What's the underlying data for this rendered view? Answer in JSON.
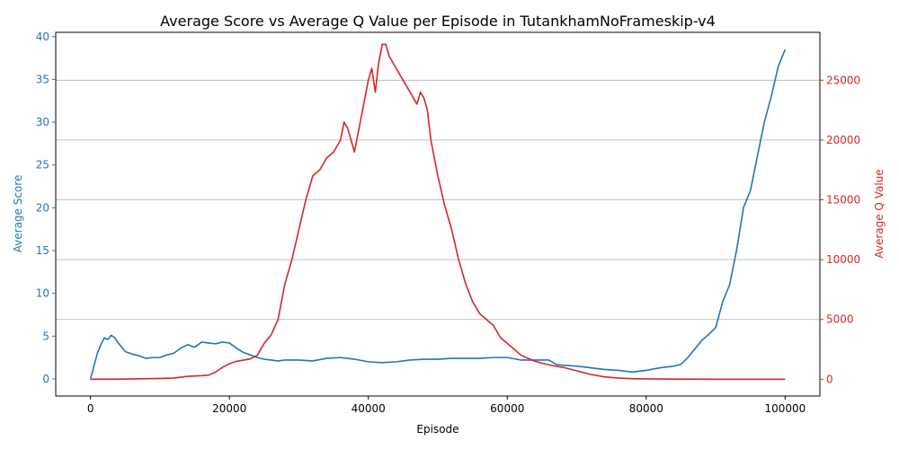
{
  "chart_data": {
    "type": "line",
    "title": "Average Score vs Average Q Value per Episode in TutankhamNoFrameskip-v4",
    "xlabel": "Episode",
    "ylabel_left": "Average Score",
    "ylabel_right": "Average Q Value",
    "xlim": [
      -5000,
      105000
    ],
    "ylim_left": [
      -2,
      40.5
    ],
    "ylim_right": [
      -1400,
      29000
    ],
    "x_ticks": [
      0,
      20000,
      40000,
      60000,
      80000,
      100000
    ],
    "y_ticks_left": [
      0,
      5,
      10,
      15,
      20,
      25,
      30,
      35,
      40
    ],
    "y_ticks_right": [
      0,
      5000,
      10000,
      15000,
      20000,
      25000
    ],
    "grid": "horizontal lines at right-axis ticks",
    "colors": {
      "score": "#1f77b4",
      "q": "#d62728"
    },
    "series": [
      {
        "axis": "left",
        "x": [
          0,
          500,
          1000,
          1500,
          2000,
          2500,
          3000,
          3500,
          4000,
          5000,
          6000,
          7000,
          8000,
          9000,
          10000,
          11000,
          12000,
          13000,
          14000,
          15000,
          16000,
          17000,
          18000,
          19000,
          20000,
          21000,
          22000,
          23000,
          24000,
          25000,
          26000,
          27000,
          28000,
          30000,
          32000,
          34000,
          36000,
          38000,
          40000,
          42000,
          44000,
          46000,
          48000,
          50000,
          52000,
          54000,
          56000,
          58000,
          60000,
          62000,
          64000,
          66000,
          67000,
          68000,
          70000,
          72000,
          74000,
          76000,
          78000,
          80000,
          82000,
          84000,
          85000,
          86000,
          87000,
          88000,
          89000,
          90000,
          91000,
          92000,
          93000,
          94000,
          95000,
          96000,
          97000,
          98000,
          99000,
          99500,
          100000
        ],
        "values": [
          0,
          1.5,
          3,
          4,
          4.8,
          4.6,
          5.1,
          4.8,
          4.2,
          3.2,
          2.9,
          2.7,
          2.4,
          2.5,
          2.5,
          2.8,
          3.0,
          3.6,
          4.0,
          3.7,
          4.3,
          4.2,
          4.1,
          4.3,
          4.2,
          3.6,
          3.1,
          2.8,
          2.5,
          2.3,
          2.2,
          2.1,
          2.2,
          2.2,
          2.1,
          2.4,
          2.5,
          2.3,
          2.0,
          1.9,
          2.0,
          2.2,
          2.3,
          2.3,
          2.4,
          2.4,
          2.4,
          2.5,
          2.5,
          2.2,
          2.2,
          2.2,
          1.7,
          1.6,
          1.5,
          1.3,
          1.1,
          1.0,
          0.8,
          1.0,
          1.3,
          1.5,
          1.7,
          2.5,
          3.5,
          4.5,
          5.2,
          6.0,
          9.0,
          11.0,
          15.0,
          20.0,
          22.0,
          26.0,
          30.0,
          33.0,
          36.5,
          37.5,
          38.5
        ]
      },
      {
        "axis": "right",
        "x": [
          0,
          5000,
          10000,
          12000,
          14000,
          16000,
          17000,
          18000,
          19000,
          20000,
          21000,
          22000,
          23000,
          24000,
          25000,
          26000,
          27000,
          28000,
          29000,
          30000,
          31000,
          32000,
          33000,
          34000,
          35000,
          36000,
          36500,
          37000,
          38000,
          39000,
          40000,
          40500,
          41000,
          41500,
          42000,
          42500,
          43000,
          44000,
          45000,
          46000,
          47000,
          47500,
          48000,
          48500,
          49000,
          50000,
          51000,
          52000,
          53000,
          54000,
          55000,
          56000,
          57000,
          58000,
          59000,
          60000,
          62000,
          64000,
          66000,
          68000,
          70000,
          72000,
          74000,
          76000,
          78000,
          80000,
          85000,
          90000,
          95000,
          100000
        ],
        "values": [
          0,
          20,
          70,
          100,
          250,
          300,
          350,
          600,
          1000,
          1300,
          1500,
          1600,
          1700,
          2000,
          3000,
          3700,
          5000,
          8000,
          10000,
          12500,
          15000,
          17000,
          17500,
          18500,
          19000,
          20000,
          21500,
          21000,
          19000,
          22000,
          25000,
          26000,
          24000,
          26500,
          28000,
          28000,
          27000,
          26000,
          25000,
          24000,
          23000,
          24000,
          23500,
          22500,
          20000,
          17000,
          14500,
          12500,
          10000,
          8000,
          6500,
          5500,
          5000,
          4500,
          3500,
          3000,
          2000,
          1500,
          1200,
          1000,
          700,
          400,
          200,
          100,
          50,
          30,
          10,
          5,
          2,
          0
        ]
      }
    ]
  }
}
